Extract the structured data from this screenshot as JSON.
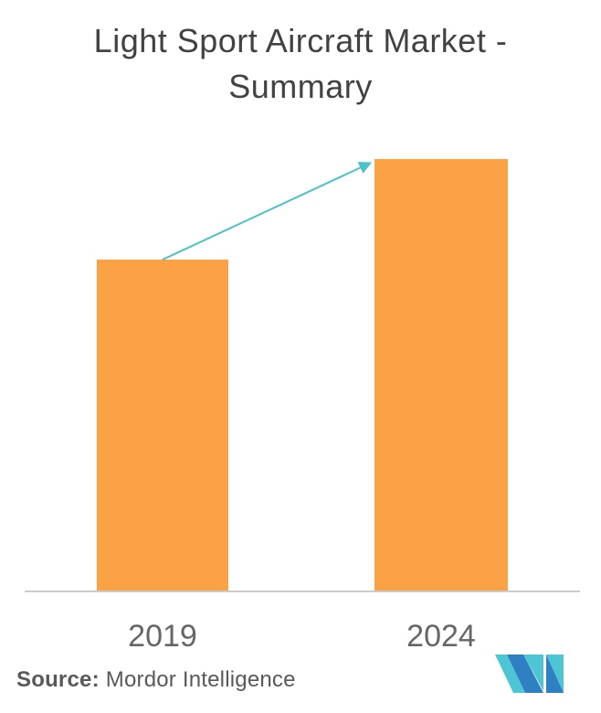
{
  "title": {
    "line1": "Light Sport Aircraft Market -",
    "line2": "Summary"
  },
  "chart_data": {
    "type": "bar",
    "title": "Light Sport Aircraft Market - Summary",
    "categories": [
      "2019",
      "2024"
    ],
    "values": [
      363,
      473
    ],
    "xlabel": "",
    "ylabel": "",
    "layout": {
      "value_axis": "hidden",
      "grid": "off",
      "legend": "none",
      "annotation": "growth arrow from top of 2019 bar to top of 2024 bar",
      "bar_color": "#FAA245",
      "arrow_color": "#4BC2C7",
      "baseline_color": "#CBCBCB"
    }
  },
  "footer": {
    "source_label": "Source:",
    "source_value": "Mordor Intelligence"
  },
  "branding": {
    "logo_name": "mordor-intelligence-logo",
    "logo_blue": "#2F80C2",
    "logo_teal": "#4EC5D2"
  },
  "colors": {
    "background": "#FFFFFF",
    "title_text": "#424242",
    "axis_label_text": "#666666",
    "source_text": "#58595B"
  }
}
